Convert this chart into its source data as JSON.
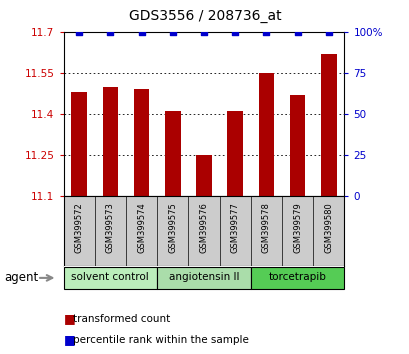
{
  "title": "GDS3556 / 208736_at",
  "samples": [
    "GSM399572",
    "GSM399573",
    "GSM399574",
    "GSM399575",
    "GSM399576",
    "GSM399577",
    "GSM399578",
    "GSM399579",
    "GSM399580"
  ],
  "bar_values": [
    11.48,
    11.5,
    11.49,
    11.41,
    11.25,
    11.41,
    11.55,
    11.47,
    11.62
  ],
  "percentile_values": [
    100,
    100,
    100,
    100,
    100,
    100,
    100,
    100,
    100
  ],
  "bar_color": "#aa0000",
  "percentile_color": "#0000cc",
  "ymin": 11.1,
  "ymax": 11.7,
  "yticks": [
    11.1,
    11.25,
    11.4,
    11.55,
    11.7
  ],
  "ytick_labels": [
    "11.1",
    "11.25",
    "11.4",
    "11.55",
    "11.7"
  ],
  "right_yticks": [
    0,
    25,
    50,
    75,
    100
  ],
  "right_ytick_labels": [
    "0",
    "25",
    "50",
    "75",
    "100%"
  ],
  "groups": [
    {
      "label": "solvent control",
      "start": 0,
      "end": 2,
      "color": "#bbeebb"
    },
    {
      "label": "angiotensin II",
      "start": 3,
      "end": 5,
      "color": "#aaddaa"
    },
    {
      "label": "torcetrapib",
      "start": 6,
      "end": 8,
      "color": "#55cc55"
    }
  ],
  "agent_label": "agent",
  "legend_bar_label": "transformed count",
  "legend_dot_label": "percentile rank within the sample",
  "background_color": "#ffffff",
  "plot_bg_color": "#ffffff",
  "tick_label_color_left": "#cc0000",
  "tick_label_color_right": "#0000cc",
  "bar_width": 0.5,
  "label_area_color": "#cccccc"
}
